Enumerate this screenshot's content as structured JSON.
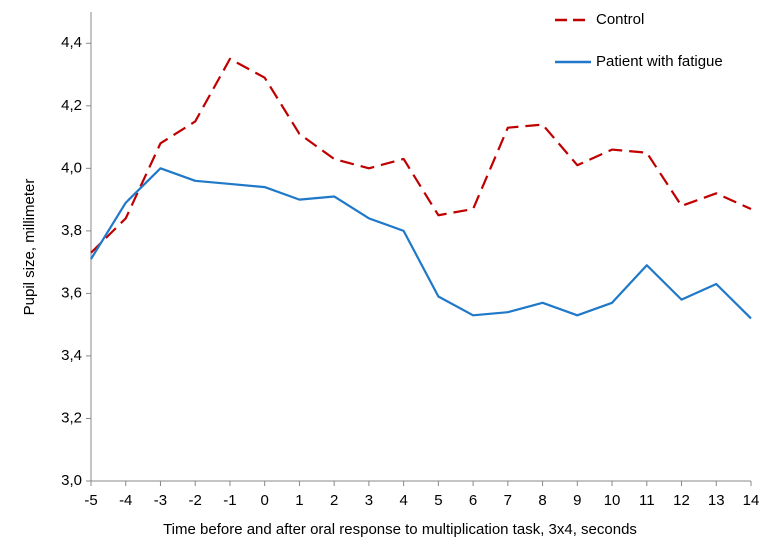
{
  "chart_data": {
    "type": "line",
    "x_label": "Time before and after oral response to multiplication task, 3x4, seconds",
    "y_label": "Pupil size, millimeter",
    "x": [
      -5,
      -4,
      -3,
      -2,
      -1,
      0,
      1,
      2,
      3,
      4,
      5,
      6,
      7,
      8,
      9,
      10,
      11,
      12,
      13,
      14
    ],
    "series": [
      {
        "name": "Control",
        "color": "#c00000",
        "dashed": true,
        "values": [
          3.73,
          3.84,
          4.08,
          4.15,
          4.35,
          4.29,
          4.11,
          4.03,
          4.0,
          4.03,
          3.85,
          3.87,
          4.13,
          4.14,
          4.01,
          4.06,
          4.05,
          3.88,
          3.92,
          3.87
        ]
      },
      {
        "name": "Patient with fatigue",
        "color": "#1f78c8",
        "dashed": false,
        "values": [
          3.71,
          3.89,
          4.0,
          3.96,
          3.95,
          3.94,
          3.9,
          3.91,
          3.84,
          3.8,
          3.59,
          3.53,
          3.54,
          3.57,
          3.53,
          3.57,
          3.69,
          3.58,
          3.63,
          3.52
        ]
      }
    ],
    "xlim": [
      -5,
      14
    ],
    "xticks": [
      -5,
      -4,
      -3,
      -2,
      -1,
      0,
      1,
      2,
      3,
      4,
      5,
      6,
      7,
      8,
      9,
      10,
      11,
      12,
      13,
      14
    ],
    "ylim": [
      3.0,
      4.5
    ],
    "yticks": [
      {
        "value": 3.0,
        "label": "3,0"
      },
      {
        "value": 3.2,
        "label": "3,2"
      },
      {
        "value": 3.4,
        "label": "3,4"
      },
      {
        "value": 3.6,
        "label": "3,6"
      },
      {
        "value": 3.8,
        "label": "3,8"
      },
      {
        "value": 4.0,
        "label": "4,0"
      },
      {
        "value": 4.2,
        "label": "4,2"
      },
      {
        "value": 4.4,
        "label": "4,4"
      }
    ],
    "grid": false,
    "legend": "upper right"
  }
}
